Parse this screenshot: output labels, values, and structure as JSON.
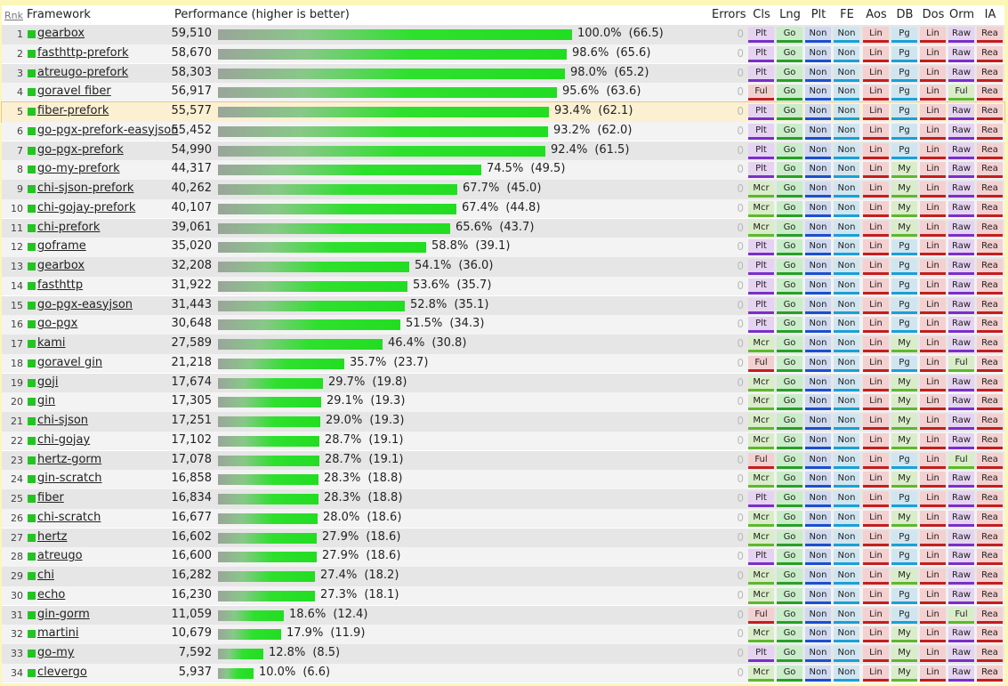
{
  "header": {
    "rank": "Rnk",
    "framework": "Framework",
    "performance": "Performance (higher is better)",
    "errors": "Errors",
    "columns": [
      "Cls",
      "Lng",
      "Plt",
      "FE",
      "Aos",
      "DB",
      "Dos",
      "Orm",
      "IA"
    ]
  },
  "badge_colors": {
    "Plt_cls": {
      "bg": "#e5d3f1",
      "line": "#7a2fc8"
    },
    "Ful": {
      "bg": "#f3d0d0",
      "line": "#c41e1e"
    },
    "Mcr": {
      "bg": "#d9edc9",
      "line": "#5db82b"
    },
    "Go": {
      "bg": "#c9edc9",
      "line": "#27a027"
    },
    "Non_plt": {
      "bg": "#cfdaf1",
      "line": "#1b4fcf"
    },
    "Non_fe": {
      "bg": "#cfe6f1",
      "line": "#1aa0d8"
    },
    "Lin_aos": {
      "bg": "#f4d0d0",
      "line": "#c41e1e"
    },
    "Pg": {
      "bg": "#cfe6f1",
      "line": "#1aa0d8"
    },
    "My": {
      "bg": "#d9edc9",
      "line": "#5db82b"
    },
    "Lin_dos": {
      "bg": "#f4d0d0",
      "line": "#c41e1e"
    },
    "Raw": {
      "bg": "#e5d3f1",
      "line": "#7a2fc8"
    },
    "Ful_orm": {
      "bg": "#d9edc9",
      "line": "#5db82b"
    },
    "Rea": {
      "bg": "#f4d0d0",
      "line": "#c41e1e"
    }
  },
  "chart_data": {
    "type": "bar",
    "title": "Performance (higher is better)",
    "highlighted_rank": 5,
    "rows": [
      {
        "rank": 1,
        "name": "gearbox",
        "value": 59510,
        "value_label": "59,510",
        "pct": "100.0%",
        "score": "(66.5)",
        "errors": "0",
        "cls": "Plt",
        "db": "Pg",
        "orm": "Raw"
      },
      {
        "rank": 2,
        "name": "fasthttp-prefork",
        "value": 58670,
        "value_label": "58,670",
        "pct": "98.6%",
        "score": "(65.6)",
        "errors": "0",
        "cls": "Plt",
        "db": "Pg",
        "orm": "Raw"
      },
      {
        "rank": 3,
        "name": "atreugo-prefork",
        "value": 58303,
        "value_label": "58,303",
        "pct": "98.0%",
        "score": "(65.2)",
        "errors": "0",
        "cls": "Plt",
        "db": "Pg",
        "orm": "Raw"
      },
      {
        "rank": 4,
        "name": "goravel fiber",
        "value": 56917,
        "value_label": "56,917",
        "pct": "95.6%",
        "score": "(63.6)",
        "errors": "0",
        "cls": "Ful",
        "db": "Pg",
        "orm": "Ful"
      },
      {
        "rank": 5,
        "name": "fiber-prefork",
        "value": 55577,
        "value_label": "55,577",
        "pct": "93.4%",
        "score": "(62.1)",
        "errors": "0",
        "cls": "Plt",
        "db": "Pg",
        "orm": "Raw"
      },
      {
        "rank": 6,
        "name": "go-pgx-prefork-easyjson",
        "value": 55452,
        "value_label": "55,452",
        "pct": "93.2%",
        "score": "(62.0)",
        "errors": "0",
        "cls": "Plt",
        "db": "Pg",
        "orm": "Raw"
      },
      {
        "rank": 7,
        "name": "go-pgx-prefork",
        "value": 54990,
        "value_label": "54,990",
        "pct": "92.4%",
        "score": "(61.5)",
        "errors": "0",
        "cls": "Plt",
        "db": "Pg",
        "orm": "Raw"
      },
      {
        "rank": 8,
        "name": "go-my-prefork",
        "value": 44317,
        "value_label": "44,317",
        "pct": "74.5%",
        "score": "(49.5)",
        "errors": "0",
        "cls": "Plt",
        "db": "My",
        "orm": "Raw"
      },
      {
        "rank": 9,
        "name": "chi-sjson-prefork",
        "value": 40262,
        "value_label": "40,262",
        "pct": "67.7%",
        "score": "(45.0)",
        "errors": "0",
        "cls": "Mcr",
        "db": "My",
        "orm": "Raw"
      },
      {
        "rank": 10,
        "name": "chi-gojay-prefork",
        "value": 40107,
        "value_label": "40,107",
        "pct": "67.4%",
        "score": "(44.8)",
        "errors": "0",
        "cls": "Mcr",
        "db": "My",
        "orm": "Raw"
      },
      {
        "rank": 11,
        "name": "chi-prefork",
        "value": 39061,
        "value_label": "39,061",
        "pct": "65.6%",
        "score": "(43.7)",
        "errors": "0",
        "cls": "Mcr",
        "db": "My",
        "orm": "Raw"
      },
      {
        "rank": 12,
        "name": "goframe",
        "value": 35020,
        "value_label": "35,020",
        "pct": "58.8%",
        "score": "(39.1)",
        "errors": "0",
        "cls": "Plt",
        "db": "Pg",
        "orm": "Raw"
      },
      {
        "rank": 13,
        "name": "gearbox",
        "value": 32208,
        "value_label": "32,208",
        "pct": "54.1%",
        "score": "(36.0)",
        "errors": "0",
        "cls": "Plt",
        "db": "Pg",
        "orm": "Raw"
      },
      {
        "rank": 14,
        "name": "fasthttp",
        "value": 31922,
        "value_label": "31,922",
        "pct": "53.6%",
        "score": "(35.7)",
        "errors": "0",
        "cls": "Plt",
        "db": "Pg",
        "orm": "Raw"
      },
      {
        "rank": 15,
        "name": "go-pgx-easyjson",
        "value": 31443,
        "value_label": "31,443",
        "pct": "52.8%",
        "score": "(35.1)",
        "errors": "0",
        "cls": "Plt",
        "db": "Pg",
        "orm": "Raw"
      },
      {
        "rank": 16,
        "name": "go-pgx",
        "value": 30648,
        "value_label": "30,648",
        "pct": "51.5%",
        "score": "(34.3)",
        "errors": "0",
        "cls": "Plt",
        "db": "Pg",
        "orm": "Raw"
      },
      {
        "rank": 17,
        "name": "kami",
        "value": 27589,
        "value_label": "27,589",
        "pct": "46.4%",
        "score": "(30.8)",
        "errors": "0",
        "cls": "Mcr",
        "db": "My",
        "orm": "Raw"
      },
      {
        "rank": 18,
        "name": "goravel gin",
        "value": 21218,
        "value_label": "21,218",
        "pct": "35.7%",
        "score": "(23.7)",
        "errors": "0",
        "cls": "Ful",
        "db": "Pg",
        "orm": "Ful"
      },
      {
        "rank": 19,
        "name": "goji",
        "value": 17674,
        "value_label": "17,674",
        "pct": "29.7%",
        "score": "(19.8)",
        "errors": "0",
        "cls": "Mcr",
        "db": "My",
        "orm": "Raw"
      },
      {
        "rank": 20,
        "name": "gin",
        "value": 17305,
        "value_label": "17,305",
        "pct": "29.1%",
        "score": "(19.3)",
        "errors": "0",
        "cls": "Mcr",
        "db": "My",
        "orm": "Raw"
      },
      {
        "rank": 21,
        "name": "chi-sjson",
        "value": 17251,
        "value_label": "17,251",
        "pct": "29.0%",
        "score": "(19.3)",
        "errors": "0",
        "cls": "Mcr",
        "db": "My",
        "orm": "Raw"
      },
      {
        "rank": 22,
        "name": "chi-gojay",
        "value": 17102,
        "value_label": "17,102",
        "pct": "28.7%",
        "score": "(19.1)",
        "errors": "0",
        "cls": "Mcr",
        "db": "My",
        "orm": "Raw"
      },
      {
        "rank": 23,
        "name": "hertz-gorm",
        "value": 17078,
        "value_label": "17,078",
        "pct": "28.7%",
        "score": "(19.1)",
        "errors": "0",
        "cls": "Ful",
        "db": "Pg",
        "orm": "Ful"
      },
      {
        "rank": 24,
        "name": "gin-scratch",
        "value": 16858,
        "value_label": "16,858",
        "pct": "28.3%",
        "score": "(18.8)",
        "errors": "0",
        "cls": "Mcr",
        "db": "My",
        "orm": "Raw"
      },
      {
        "rank": 25,
        "name": "fiber",
        "value": 16834,
        "value_label": "16,834",
        "pct": "28.3%",
        "score": "(18.8)",
        "errors": "0",
        "cls": "Plt",
        "db": "Pg",
        "orm": "Raw"
      },
      {
        "rank": 26,
        "name": "chi-scratch",
        "value": 16677,
        "value_label": "16,677",
        "pct": "28.0%",
        "score": "(18.6)",
        "errors": "0",
        "cls": "Mcr",
        "db": "My",
        "orm": "Raw"
      },
      {
        "rank": 27,
        "name": "hertz",
        "value": 16602,
        "value_label": "16,602",
        "pct": "27.9%",
        "score": "(18.6)",
        "errors": "0",
        "cls": "Mcr",
        "db": "Pg",
        "orm": "Raw"
      },
      {
        "rank": 28,
        "name": "atreugo",
        "value": 16600,
        "value_label": "16,600",
        "pct": "27.9%",
        "score": "(18.6)",
        "errors": "0",
        "cls": "Plt",
        "db": "Pg",
        "orm": "Raw"
      },
      {
        "rank": 29,
        "name": "chi",
        "value": 16282,
        "value_label": "16,282",
        "pct": "27.4%",
        "score": "(18.2)",
        "errors": "0",
        "cls": "Mcr",
        "db": "My",
        "orm": "Raw"
      },
      {
        "rank": 30,
        "name": "echo",
        "value": 16230,
        "value_label": "16,230",
        "pct": "27.3%",
        "score": "(18.1)",
        "errors": "0",
        "cls": "Mcr",
        "db": "Pg",
        "orm": "Raw"
      },
      {
        "rank": 31,
        "name": "gin-gorm",
        "value": 11059,
        "value_label": "11,059",
        "pct": "18.6%",
        "score": "(12.4)",
        "errors": "0",
        "cls": "Ful",
        "db": "Pg",
        "orm": "Ful"
      },
      {
        "rank": 32,
        "name": "martini",
        "value": 10679,
        "value_label": "10,679",
        "pct": "17.9%",
        "score": "(11.9)",
        "errors": "0",
        "cls": "Mcr",
        "db": "My",
        "orm": "Raw"
      },
      {
        "rank": 33,
        "name": "go-my",
        "value": 7592,
        "value_label": "7,592",
        "pct": "12.8%",
        "score": "(8.5)",
        "errors": "0",
        "cls": "Plt",
        "db": "My",
        "orm": "Raw"
      },
      {
        "rank": 34,
        "name": "clevergo",
        "value": 5937,
        "value_label": "5,937",
        "pct": "10.0%",
        "score": "(6.6)",
        "errors": "0",
        "cls": "Mcr",
        "db": "My",
        "orm": "Raw"
      }
    ],
    "constant_columns": {
      "lng": "Go",
      "plt": "Non",
      "fe": "Non",
      "aos": "Lin",
      "dos": "Lin",
      "ia": "Rea"
    }
  }
}
